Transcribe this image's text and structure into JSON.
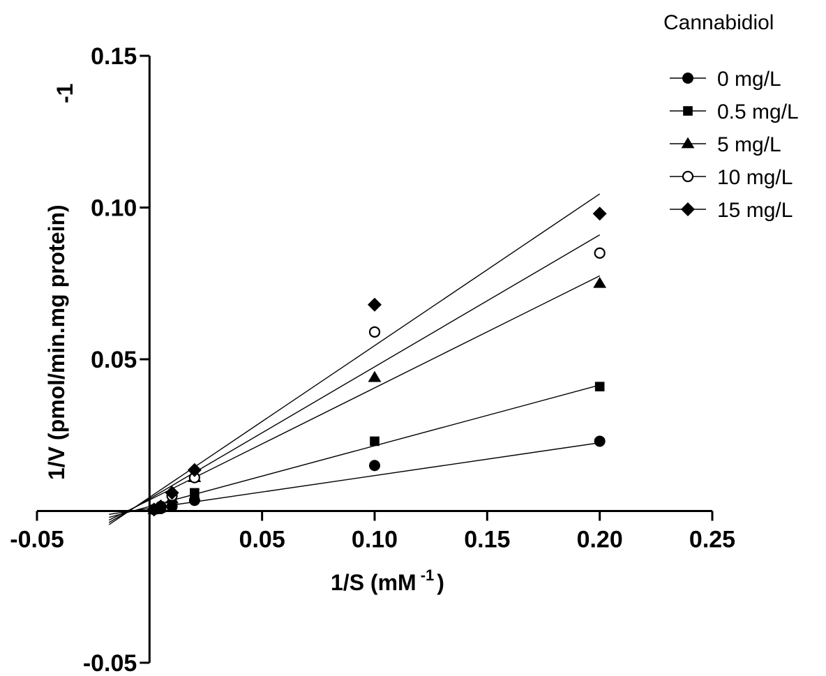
{
  "chart_data": {
    "type": "scatter",
    "title": "",
    "xlabel": "1/S (mM",
    "xlabel_sup": "-1",
    "xlabel_close": ")",
    "ylabel": "1/V (pmol/min.mg protein)",
    "ylabel_sup": "-1",
    "xlim": [
      -0.05,
      0.25
    ],
    "ylim": [
      -0.05,
      0.15
    ],
    "x_ticks": [
      -0.05,
      0.05,
      0.1,
      0.15,
      0.2,
      0.25
    ],
    "x_tick_labels": [
      "-0.05",
      "0.05",
      "0.10",
      "0.15",
      "0.20",
      "0.25"
    ],
    "y_ticks": [
      0.15,
      0.1,
      0.05,
      -0.05
    ],
    "y_tick_labels": [
      "0.15",
      "0.10",
      "0.05",
      "-0.05"
    ],
    "grid": false,
    "legend_title": "Cannabidiol",
    "legend_position": "top-right",
    "series": [
      {
        "name": "0 mg/L",
        "marker": "circle-filled",
        "x": [
          0.002,
          0.005,
          0.01,
          0.02,
          0.1,
          0.2
        ],
        "y": [
          0.0005,
          0.0008,
          0.0015,
          0.0035,
          0.015,
          0.023
        ],
        "fit": {
          "x_start": -0.018,
          "x_end": 0.2,
          "y_start": -0.0011,
          "y_end": 0.0225
        }
      },
      {
        "name": "0.5 mg/L",
        "marker": "square-filled",
        "x": [
          0.002,
          0.005,
          0.01,
          0.02,
          0.1,
          0.2
        ],
        "y": [
          0.0005,
          0.001,
          0.002,
          0.006,
          0.023,
          0.041
        ],
        "fit": {
          "x_start": -0.018,
          "x_end": 0.2,
          "y_start": -0.0021,
          "y_end": 0.0415
        }
      },
      {
        "name": "5 mg/L",
        "marker": "triangle-filled",
        "x": [
          0.002,
          0.005,
          0.01,
          0.02,
          0.1,
          0.2
        ],
        "y": [
          0.0005,
          0.0012,
          0.004,
          0.011,
          0.044,
          0.075
        ],
        "fit": {
          "x_start": -0.018,
          "x_end": 0.2,
          "y_start": -0.003,
          "y_end": 0.0775
        }
      },
      {
        "name": "10 mg/L",
        "marker": "circle-open",
        "x": [
          0.002,
          0.005,
          0.01,
          0.02,
          0.1,
          0.2
        ],
        "y": [
          0.0005,
          0.0015,
          0.005,
          0.011,
          0.059,
          0.085
        ],
        "fit": {
          "x_start": -0.018,
          "x_end": 0.2,
          "y_start": -0.0038,
          "y_end": 0.091
        }
      },
      {
        "name": "15 mg/L",
        "marker": "diamond-filled",
        "x": [
          0.002,
          0.005,
          0.01,
          0.02,
          0.1,
          0.2
        ],
        "y": [
          0.0005,
          0.0015,
          0.006,
          0.0135,
          0.068,
          0.098
        ],
        "fit": {
          "x_start": -0.018,
          "x_end": 0.2,
          "y_start": -0.0045,
          "y_end": 0.1045
        }
      }
    ]
  }
}
